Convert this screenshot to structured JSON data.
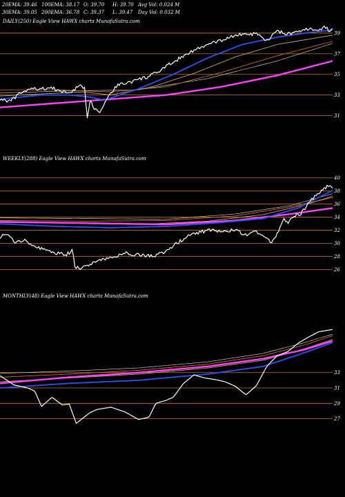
{
  "header": {
    "ema20": "20EMA: 39.46",
    "ema100": "100EMA: 38.17",
    "open": "O: 39.70",
    "high": "H: 39.70",
    "avg_vol": "Avg Vol: 0.024  M",
    "ema30": "30EMA: 39.05",
    "ema200": "200EMA: 36.78",
    "close": "C: 39.37",
    "low": "L: 39.47",
    "day_vol": "Day Vol: 0.032  M"
  },
  "colors": {
    "background": "#000000",
    "price": "#ffffff",
    "ema_fast": "#2952ff",
    "ema_slow": "#ff40ff",
    "ema_mid_a": "#c9a36b",
    "ema_mid_b": "#d06a20",
    "ema_thin": "#e6e6e6",
    "grid": "#d07a00"
  },
  "chart_data": [
    {
      "type": "line",
      "title": "DAILY(250) Eagle  View  HAWX  charts MunafaSutra.com",
      "yticks": [
        39,
        37,
        35,
        33,
        31
      ],
      "ylim": [
        30.3,
        39.8
      ],
      "n_points": 250,
      "price_anchors": [
        [
          0,
          32.6
        ],
        [
          15,
          32.4
        ],
        [
          30,
          33.2
        ],
        [
          45,
          33.6
        ],
        [
          60,
          33.6
        ],
        [
          75,
          33.7
        ],
        [
          85,
          33.4
        ],
        [
          100,
          33.2
        ],
        [
          115,
          33.9
        ],
        [
          122,
          33.6
        ],
        [
          126,
          30.7
        ],
        [
          130,
          32.5
        ],
        [
          135,
          31.8
        ],
        [
          145,
          31.4
        ],
        [
          155,
          32.8
        ],
        [
          170,
          34.0
        ],
        [
          185,
          34.2
        ],
        [
          200,
          34.5
        ],
        [
          215,
          34.8
        ],
        [
          230,
          35.3
        ],
        [
          245,
          36.0
        ],
        [
          260,
          36.6
        ],
        [
          275,
          37.2
        ],
        [
          290,
          37.6
        ],
        [
          305,
          38.0
        ],
        [
          320,
          38.3
        ],
        [
          335,
          38.7
        ],
        [
          350,
          38.9
        ],
        [
          370,
          38.9
        ],
        [
          385,
          38.2
        ],
        [
          400,
          39.2
        ],
        [
          415,
          38.9
        ],
        [
          430,
          39.1
        ],
        [
          445,
          39.4
        ],
        [
          460,
          39.3
        ],
        [
          470,
          39.6
        ],
        [
          475,
          39.2
        ],
        [
          480,
          39.4
        ]
      ],
      "ema_fast_anchors": [
        [
          0,
          32.6
        ],
        [
          60,
          33.0
        ],
        [
          100,
          33.0
        ],
        [
          130,
          32.8
        ],
        [
          150,
          32.5
        ],
        [
          200,
          33.6
        ],
        [
          250,
          35.0
        ],
        [
          300,
          36.6
        ],
        [
          350,
          37.9
        ],
        [
          400,
          38.6
        ],
        [
          440,
          39.0
        ],
        [
          480,
          39.3
        ]
      ],
      "ema_mid_a_anchors": [
        [
          0,
          32.9
        ],
        [
          60,
          33.1
        ],
        [
          120,
          33.3
        ],
        [
          160,
          33.0
        ],
        [
          220,
          33.8
        ],
        [
          280,
          35.1
        ],
        [
          340,
          36.7
        ],
        [
          400,
          37.9
        ],
        [
          480,
          38.8
        ]
      ],
      "ema_mid_b_anchors": [
        [
          0,
          33.5
        ],
        [
          80,
          33.5
        ],
        [
          160,
          33.3
        ],
        [
          240,
          33.8
        ],
        [
          320,
          35.2
        ],
        [
          400,
          36.8
        ],
        [
          480,
          38.2
        ]
      ],
      "ema_slow_anchors": [
        [
          0,
          31.8
        ],
        [
          80,
          32.2
        ],
        [
          160,
          32.6
        ],
        [
          240,
          33.0
        ],
        [
          320,
          33.8
        ],
        [
          400,
          34.9
        ],
        [
          480,
          36.3
        ]
      ],
      "ema_thin_anchors": [
        [
          0,
          33.2
        ],
        [
          100,
          33.4
        ],
        [
          200,
          33.5
        ],
        [
          300,
          34.6
        ],
        [
          400,
          36.3
        ],
        [
          480,
          38.0
        ]
      ]
    },
    {
      "type": "line",
      "title": "WEEKLY(288) Eagle  View  HAWX  charts MunafaSutra.com",
      "yticks": [
        40,
        38,
        36,
        34,
        32,
        30,
        28,
        26
      ],
      "ylim": [
        24.8,
        40.5
      ],
      "price_anchors": [
        [
          0,
          31.0
        ],
        [
          10,
          31.4
        ],
        [
          20,
          30.2
        ],
        [
          35,
          30.6
        ],
        [
          50,
          29.5
        ],
        [
          65,
          29.0
        ],
        [
          80,
          28.5
        ],
        [
          95,
          28.3
        ],
        [
          105,
          28.9
        ],
        [
          108,
          26.5
        ],
        [
          115,
          26.2
        ],
        [
          125,
          26.6
        ],
        [
          140,
          27.4
        ],
        [
          160,
          27.8
        ],
        [
          180,
          28.5
        ],
        [
          200,
          28.3
        ],
        [
          220,
          28.0
        ],
        [
          240,
          28.8
        ],
        [
          260,
          30.4
        ],
        [
          280,
          31.5
        ],
        [
          300,
          32.0
        ],
        [
          320,
          31.8
        ],
        [
          340,
          32.2
        ],
        [
          355,
          31.2
        ],
        [
          370,
          31.8
        ],
        [
          385,
          31.0
        ],
        [
          390,
          30.1
        ],
        [
          400,
          31.4
        ],
        [
          410,
          33.6
        ],
        [
          415,
          33.2
        ],
        [
          425,
          34.2
        ],
        [
          435,
          34.6
        ],
        [
          445,
          36.0
        ],
        [
          455,
          37.3
        ],
        [
          465,
          38.2
        ],
        [
          470,
          38.6
        ],
        [
          475,
          38.8
        ],
        [
          480,
          38.4
        ]
      ],
      "ema_fast_anchors": [
        [
          0,
          33.0
        ],
        [
          80,
          32.6
        ],
        [
          160,
          32.4
        ],
        [
          240,
          32.6
        ],
        [
          320,
          33.2
        ],
        [
          380,
          33.8
        ],
        [
          430,
          35.4
        ],
        [
          480,
          38.1
        ]
      ],
      "ema_mid_a_anchors": [
        [
          0,
          33.2
        ],
        [
          100,
          33.1
        ],
        [
          200,
          32.9
        ],
        [
          300,
          33.4
        ],
        [
          380,
          34.4
        ],
        [
          440,
          35.9
        ],
        [
          480,
          37.2
        ]
      ],
      "ema_mid_b_anchors": [
        [
          0,
          33.5
        ],
        [
          120,
          33.4
        ],
        [
          240,
          33.5
        ],
        [
          340,
          34.2
        ],
        [
          420,
          35.6
        ],
        [
          480,
          37.0
        ]
      ],
      "ema_slow_anchors": [
        [
          0,
          33.3
        ],
        [
          120,
          33.1
        ],
        [
          240,
          32.9
        ],
        [
          340,
          33.5
        ],
        [
          420,
          34.5
        ],
        [
          480,
          35.4
        ]
      ],
      "ema_thin_anchors": [
        [
          0,
          33.9
        ],
        [
          120,
          33.8
        ],
        [
          240,
          33.7
        ],
        [
          340,
          34.5
        ],
        [
          420,
          35.8
        ],
        [
          480,
          37.6
        ]
      ]
    },
    {
      "type": "line",
      "title": "MONTHLY(48) Eagle  View  HAWX  charts MunafaSutra.com",
      "yticks": [
        33,
        31,
        29,
        27
      ],
      "ylim": [
        25.8,
        40.6
      ],
      "price_anchors": [
        [
          0,
          32.6
        ],
        [
          20,
          31.4
        ],
        [
          40,
          31.0
        ],
        [
          50,
          30.6
        ],
        [
          60,
          28.6
        ],
        [
          75,
          29.8
        ],
        [
          90,
          28.8
        ],
        [
          100,
          28.9
        ],
        [
          110,
          26.4
        ],
        [
          120,
          27.1
        ],
        [
          130,
          27.8
        ],
        [
          140,
          28.2
        ],
        [
          160,
          28.5
        ],
        [
          180,
          27.9
        ],
        [
          200,
          26.9
        ],
        [
          215,
          27.2
        ],
        [
          225,
          29.0
        ],
        [
          240,
          29.4
        ],
        [
          250,
          29.8
        ],
        [
          265,
          31.6
        ],
        [
          280,
          32.7
        ],
        [
          295,
          32.3
        ],
        [
          310,
          32.1
        ],
        [
          325,
          31.8
        ],
        [
          340,
          31.2
        ],
        [
          355,
          30.1
        ],
        [
          370,
          31.3
        ],
        [
          385,
          33.8
        ],
        [
          400,
          35.2
        ],
        [
          415,
          35.7
        ],
        [
          430,
          36.8
        ],
        [
          445,
          37.6
        ],
        [
          460,
          38.3
        ],
        [
          480,
          38.6
        ]
      ],
      "ema_fast_anchors": [
        [
          0,
          31.0
        ],
        [
          100,
          31.6
        ],
        [
          200,
          32.0
        ],
        [
          300,
          32.8
        ],
        [
          380,
          33.8
        ],
        [
          440,
          35.6
        ],
        [
          480,
          36.9
        ]
      ],
      "ema_mid_a_anchors": [
        [
          0,
          31.8
        ],
        [
          100,
          32.3
        ],
        [
          200,
          32.8
        ],
        [
          300,
          33.6
        ],
        [
          380,
          34.6
        ],
        [
          440,
          36.1
        ],
        [
          480,
          37.3
        ]
      ],
      "ema_mid_b_anchors": [
        [
          0,
          32.4
        ],
        [
          100,
          32.8
        ],
        [
          200,
          33.3
        ],
        [
          300,
          34.1
        ],
        [
          380,
          35.2
        ],
        [
          440,
          36.6
        ],
        [
          480,
          37.8
        ]
      ],
      "ema_slow_anchors": [
        [
          0,
          31.6
        ],
        [
          100,
          32.4
        ],
        [
          200,
          33.0
        ],
        [
          300,
          33.8
        ],
        [
          380,
          34.8
        ],
        [
          440,
          36.0
        ],
        [
          480,
          37.1
        ]
      ],
      "ema_thin_anchors": [
        [
          0,
          32.9
        ],
        [
          100,
          33.2
        ],
        [
          200,
          33.6
        ],
        [
          300,
          34.4
        ],
        [
          380,
          35.5
        ],
        [
          440,
          36.9
        ],
        [
          480,
          38.0
        ]
      ]
    }
  ]
}
